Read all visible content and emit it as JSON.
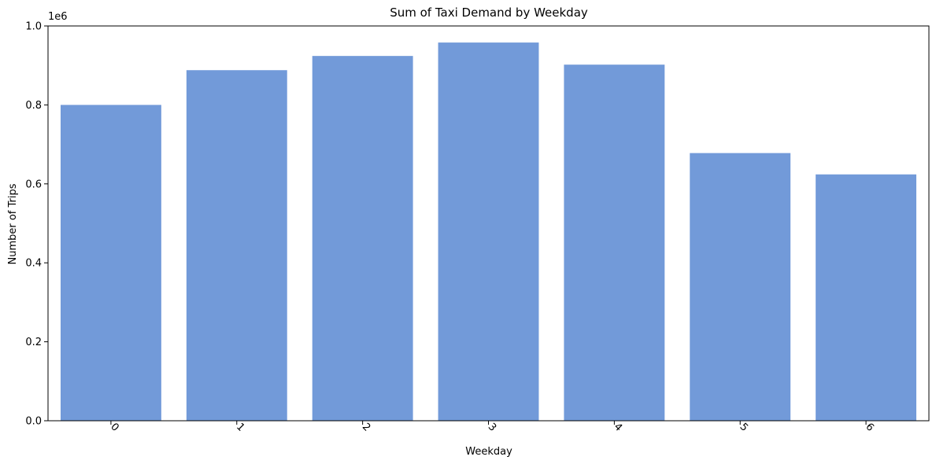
{
  "chart_data": {
    "type": "bar",
    "title": "Sum of Taxi Demand by Weekday",
    "xlabel": "Weekday",
    "ylabel": "Number of Trips",
    "y_scale_label": "1e6",
    "categories": [
      "0",
      "1",
      "2",
      "3",
      "4",
      "5",
      "6"
    ],
    "values": [
      800000,
      888000,
      924000,
      958000,
      902000,
      678000,
      624000
    ],
    "ylim": [
      0,
      1000000
    ],
    "yticks": [
      0,
      200000,
      400000,
      600000,
      800000,
      1000000
    ],
    "ytick_labels": [
      "0.0",
      "0.2",
      "0.4",
      "0.6",
      "0.8",
      "1.0"
    ],
    "xtick_rotation_deg": 45,
    "grid": false,
    "legend": "none",
    "bar_color": "#729ad9"
  }
}
